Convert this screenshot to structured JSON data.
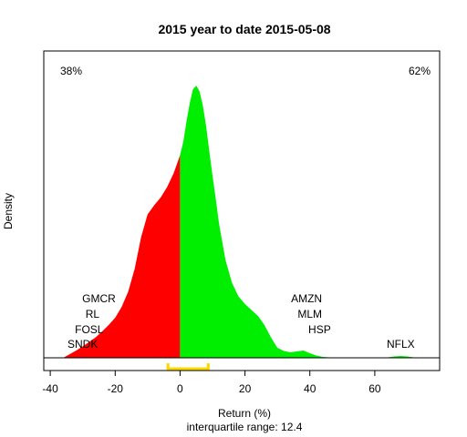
{
  "chart_data": {
    "type": "area",
    "title": "2015  year to date 2015-05-08",
    "xlabel": "Return (%)",
    "ylabel": "Density",
    "subtitle": "interquartile range: 12.4",
    "xlim": [
      -42,
      80
    ],
    "ylim": [
      0,
      0.064
    ],
    "xticks": [
      -40,
      -20,
      0,
      20,
      40,
      60
    ],
    "grid": false,
    "left_pct_label": "38%",
    "right_pct_label": "62%",
    "split_at": 0,
    "colors": {
      "negative": "#ff0000",
      "positive": "#00ee00",
      "iqr": "#ffd700",
      "neg_label": "#dd0000",
      "pos_label": "#008800",
      "baseline": "#aaaaaa"
    },
    "iqr": [
      -3.7,
      8.7
    ],
    "density": {
      "x": [
        -36,
        -34,
        -32,
        -30,
        -28,
        -26,
        -24,
        -22,
        -20,
        -18,
        -16,
        -14,
        -12,
        -10,
        -8,
        -6,
        -4,
        -2,
        0,
        1,
        2,
        3,
        4,
        5,
        6,
        7,
        8,
        9,
        10,
        11,
        12,
        14,
        16,
        18,
        20,
        22,
        24,
        26,
        28,
        30,
        32,
        34,
        36,
        38,
        40,
        42,
        44,
        46,
        48,
        50,
        60,
        64,
        66,
        68,
        70,
        72,
        74,
        76
      ],
      "y": [
        0.0,
        0.0008,
        0.0016,
        0.0025,
        0.0035,
        0.0045,
        0.0058,
        0.0072,
        0.0088,
        0.0112,
        0.0145,
        0.0195,
        0.0265,
        0.0315,
        0.0335,
        0.0352,
        0.0375,
        0.0405,
        0.0445,
        0.0475,
        0.052,
        0.056,
        0.059,
        0.0598,
        0.0585,
        0.0555,
        0.051,
        0.0455,
        0.04,
        0.035,
        0.0295,
        0.0215,
        0.0165,
        0.0135,
        0.0118,
        0.0105,
        0.0092,
        0.0072,
        0.0045,
        0.0022,
        0.0015,
        0.0012,
        0.0014,
        0.0016,
        0.001,
        0.0005,
        0.0002,
        0.0001,
        0.0,
        0.0,
        0.0,
        0.0001,
        0.0003,
        0.0004,
        0.0003,
        0.0001,
        0.0,
        0.0
      ]
    },
    "annotations": [
      {
        "text": "GMCR",
        "x": -25,
        "level": 4
      },
      {
        "text": "RL",
        "x": -27,
        "level": 3
      },
      {
        "text": "FOSL",
        "x": -28,
        "level": 2
      },
      {
        "text": "SNDK",
        "x": -30,
        "level": 1
      },
      {
        "text": "AMZN",
        "x": 39,
        "level": 4
      },
      {
        "text": "MLM",
        "x": 40,
        "level": 3
      },
      {
        "text": "HSP",
        "x": 43,
        "level": 2
      },
      {
        "text": "NFLX",
        "x": 68,
        "level": 1
      }
    ]
  }
}
